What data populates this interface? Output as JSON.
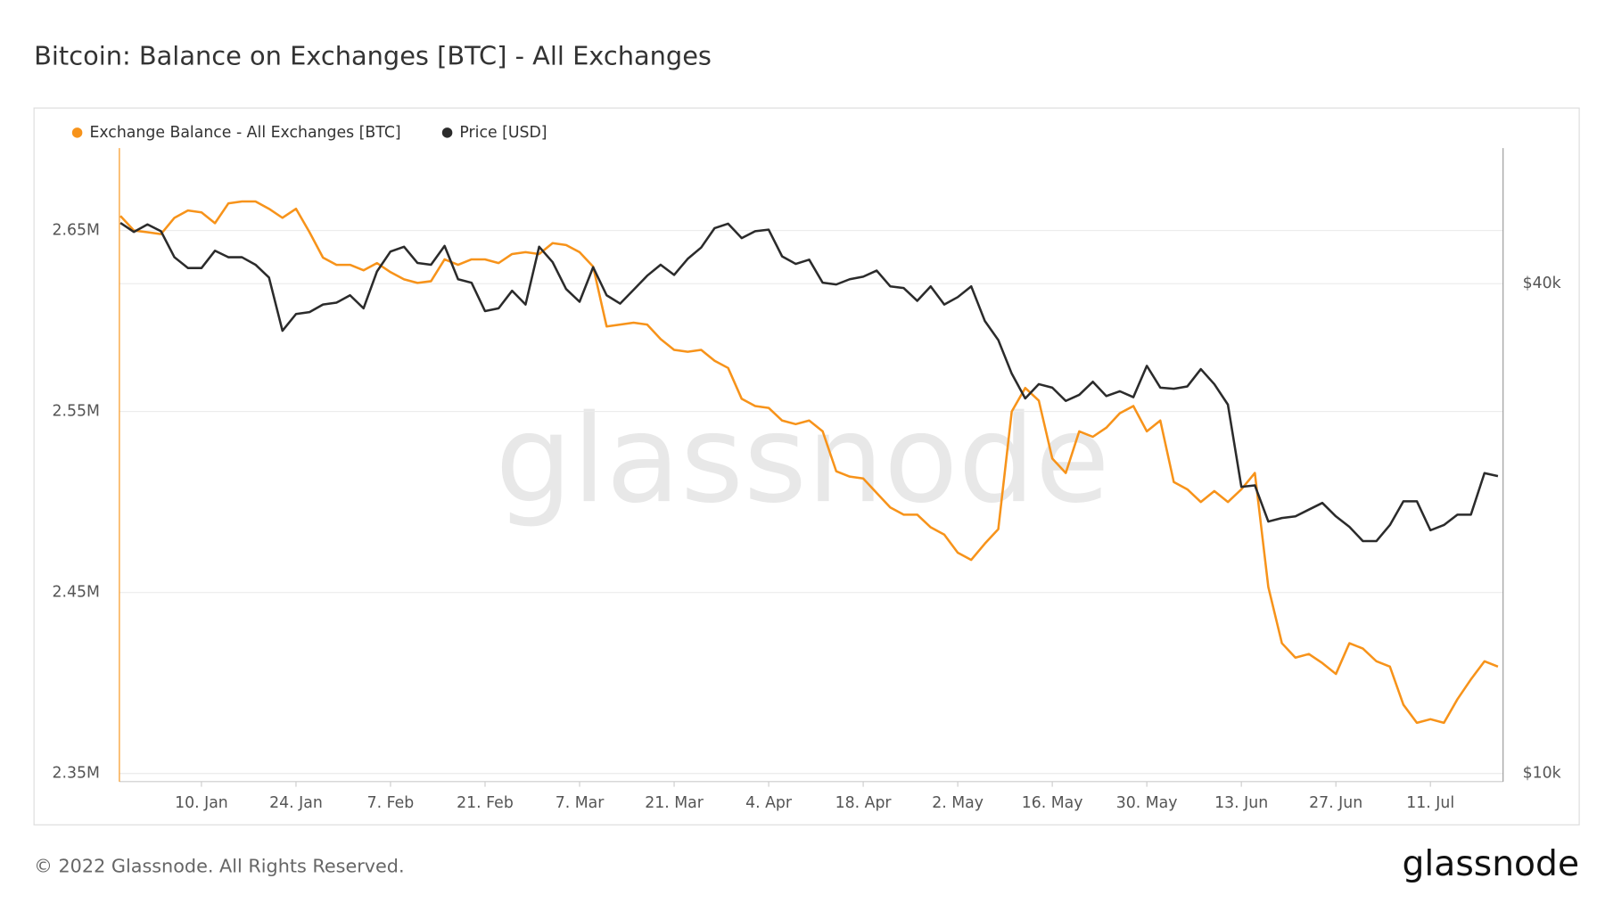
{
  "chart_data": {
    "type": "line",
    "title": "Bitcoin: Balance on Exchanges [BTC] - All Exchanges",
    "watermark": "glassnode",
    "x": [
      "29. Dec",
      "31. Dec",
      "2. Jan",
      "4. Jan",
      "6. Jan",
      "8. Jan",
      "10. Jan",
      "12. Jan",
      "14. Jan",
      "16. Jan",
      "18. Jan",
      "20. Jan",
      "22. Jan",
      "24. Jan",
      "26. Jan",
      "28. Jan",
      "30. Jan",
      "1. Feb",
      "3. Feb",
      "5. Feb",
      "7. Feb",
      "9. Feb",
      "11. Feb",
      "13. Feb",
      "15. Feb",
      "17. Feb",
      "19. Feb",
      "21. Feb",
      "23. Feb",
      "25. Feb",
      "27. Feb",
      "1. Mar",
      "3. Mar",
      "5. Mar",
      "7. Mar",
      "9. Mar",
      "11. Mar",
      "13. Mar",
      "15. Mar",
      "17. Mar",
      "19. Mar",
      "21. Mar",
      "23. Mar",
      "25. Mar",
      "27. Mar",
      "29. Mar",
      "31. Mar",
      "2. Apr",
      "4. Apr",
      "6. Apr",
      "8. Apr",
      "10. Apr",
      "12. Apr",
      "14. Apr",
      "16. Apr",
      "18. Apr",
      "20. Apr",
      "22. Apr",
      "24. Apr",
      "26. Apr",
      "28. Apr",
      "30. Apr",
      "2. May",
      "4. May",
      "6. May",
      "8. May",
      "10. May",
      "12. May",
      "14. May",
      "16. May",
      "18. May",
      "20. May",
      "22. May",
      "24. May",
      "26. May",
      "28. May",
      "30. May",
      "1. Jun",
      "3. Jun",
      "5. Jun",
      "7. Jun",
      "9. Jun",
      "11. Jun",
      "13. Jun",
      "15. Jun",
      "17. Jun",
      "19. Jun",
      "21. Jun",
      "23. Jun",
      "25. Jun",
      "27. Jun",
      "29. Jun",
      "1. Jul",
      "3. Jul",
      "5. Jul",
      "7. Jul",
      "9. Jul",
      "11. Jul",
      "13. Jul",
      "15. Jul",
      "17. Jul",
      "19. Jul",
      "21. Jul"
    ],
    "xticks": [
      "10. Jan",
      "24. Jan",
      "7. Feb",
      "21. Feb",
      "7. Mar",
      "21. Mar",
      "4. Apr",
      "18. Apr",
      "2. May",
      "16. May",
      "30. May",
      "13. Jun",
      "27. Jun",
      "11. Jul"
    ],
    "series": [
      {
        "name": "Exchange Balance - All Exchanges [BTC]",
        "color": "#f7931a",
        "values": [
          2658000,
          2650000,
          2649000,
          2648000,
          2657000,
          2661000,
          2660000,
          2654000,
          2665000,
          2666000,
          2666000,
          2662000,
          2657000,
          2662000,
          2649000,
          2635000,
          2631000,
          2631000,
          2628000,
          2632000,
          2627000,
          2623000,
          2621000,
          2622000,
          2634000,
          2631000,
          2634000,
          2634000,
          2632000,
          2637000,
          2638000,
          2637000,
          2643000,
          2642000,
          2638000,
          2630000,
          2597000,
          2598000,
          2599000,
          2598000,
          2590000,
          2584000,
          2583000,
          2584000,
          2578000,
          2574000,
          2557000,
          2553000,
          2552000,
          2545000,
          2543000,
          2545000,
          2539000,
          2517000,
          2514000,
          2513000,
          2505000,
          2497000,
          2493000,
          2493000,
          2486000,
          2482000,
          2472000,
          2468000,
          2477000,
          2485000,
          2550000,
          2563000,
          2556000,
          2524000,
          2516000,
          2539000,
          2536000,
          2541000,
          2549000,
          2553000,
          2539000,
          2545000,
          2511000,
          2507000,
          2500000,
          2506000,
          2500000,
          2507000,
          2516000,
          2453000,
          2422000,
          2414000,
          2416000,
          2411000,
          2405000,
          2422000,
          2419000,
          2412000,
          2409000,
          2388000,
          2378000,
          2380000,
          2378000,
          2391000,
          2402000,
          2412000,
          2409000
        ]
      },
      {
        "name": "Price [USD]",
        "color": "#2b2b2b",
        "axis": "y2",
        "values": [
          47500,
          46300,
          47300,
          46400,
          43100,
          41800,
          41800,
          43900,
          43100,
          43100,
          42200,
          40700,
          35000,
          36700,
          36900,
          37700,
          37900,
          38700,
          37300,
          41400,
          43800,
          44400,
          42400,
          42200,
          44500,
          40500,
          40100,
          37000,
          37300,
          39200,
          37700,
          44400,
          42500,
          39400,
          38000,
          41900,
          38700,
          37800,
          39300,
          40900,
          42200,
          41000,
          42900,
          44300,
          46800,
          47400,
          45500,
          46400,
          46600,
          43200,
          42300,
          42800,
          40100,
          39900,
          40500,
          40800,
          41500,
          39700,
          39500,
          38100,
          39700,
          37700,
          38500,
          39700,
          36000,
          34100,
          31000,
          28900,
          30100,
          29800,
          28700,
          29200,
          30300,
          29100,
          29500,
          29000,
          31700,
          29800,
          29700,
          29900,
          31400,
          30100,
          28400,
          22500,
          22600,
          20400,
          20600,
          20700,
          21100,
          21500,
          20700,
          20100,
          19300,
          19300,
          20200,
          21600,
          21600,
          19900,
          20200,
          20800,
          20800,
          23400,
          23200
        ]
      }
    ],
    "ylim": [
      2345500,
      2695500
    ],
    "yticks": [
      {
        "value": 2350000,
        "label": "2.35M"
      },
      {
        "value": 2450000,
        "label": "2.45M"
      },
      {
        "value": 2550000,
        "label": "2.55M"
      },
      {
        "value": 2650000,
        "label": "2.65M"
      }
    ],
    "y2lim": [
      9770,
      58700
    ],
    "y2ticks": [
      {
        "value": 10000,
        "label": "$10k"
      },
      {
        "value": 40000,
        "label": "$40k"
      }
    ],
    "y2log": true,
    "grid": true,
    "legend": "top-left"
  },
  "footer": {
    "copyright": "© 2022 Glassnode. All Rights Reserved.",
    "logo": "glassnode"
  }
}
